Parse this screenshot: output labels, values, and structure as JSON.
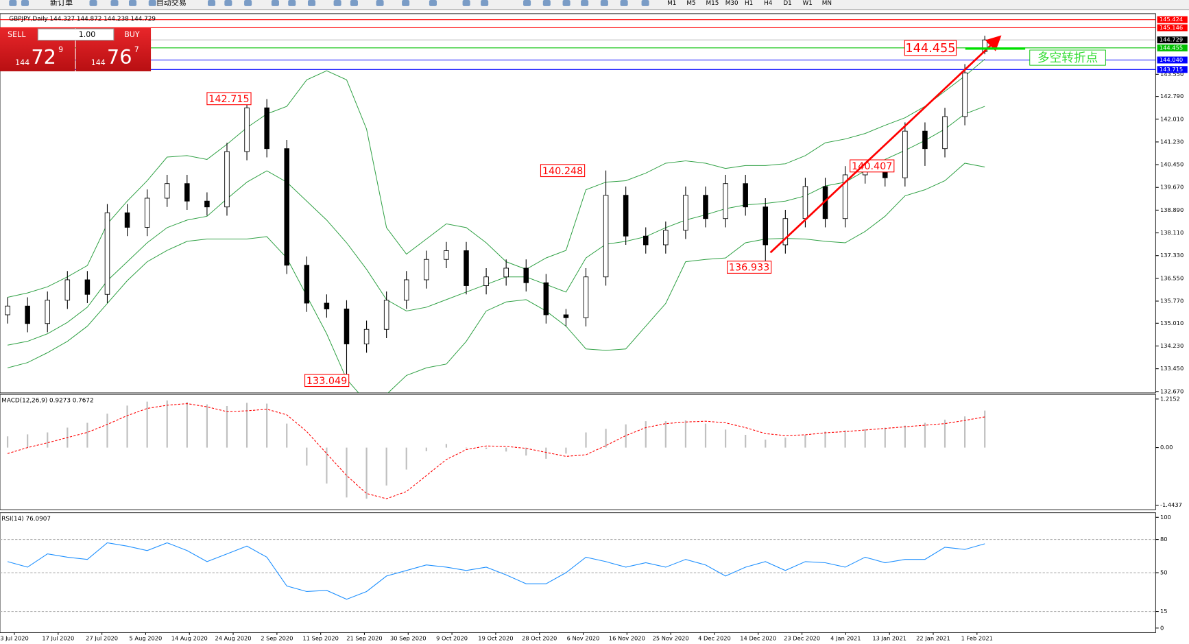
{
  "toolbar": {
    "buttons": [
      "新订单",
      "自动交易"
    ],
    "timeframes": [
      "M1",
      "M5",
      "M15",
      "M30",
      "H1",
      "H4",
      "D1",
      "W1",
      "MN"
    ]
  },
  "trade_panel": {
    "sell": "SELL",
    "buy": "BUY",
    "volume": "1.00",
    "bid": {
      "big": "144",
      "main": "72",
      "small": "9"
    },
    "ask": {
      "big": "144",
      "main": "76",
      "small": "7"
    }
  },
  "chart_data": [
    {
      "type": "candlestick",
      "title": "GBPJPY,Daily 144.327 144.872 144.238 144.729",
      "candles": [
        [
          135.3,
          135.9,
          135.0,
          135.6
        ],
        [
          135.6,
          135.9,
          134.7,
          135.0
        ],
        [
          135.0,
          136.1,
          134.7,
          135.8
        ],
        [
          135.8,
          136.8,
          135.5,
          136.5
        ],
        [
          136.5,
          136.8,
          135.7,
          136.0
        ],
        [
          136.0,
          139.1,
          135.7,
          138.8
        ],
        [
          138.8,
          139.1,
          138.0,
          138.3
        ],
        [
          138.3,
          139.6,
          138.0,
          139.3
        ],
        [
          139.3,
          140.1,
          139.0,
          139.8
        ],
        [
          139.8,
          140.1,
          138.9,
          139.2
        ],
        [
          139.2,
          139.5,
          138.7,
          139.0
        ],
        [
          139.0,
          141.2,
          138.7,
          140.9
        ],
        [
          140.9,
          142.715,
          140.6,
          142.4
        ],
        [
          142.4,
          142.7,
          140.7,
          141.0
        ],
        [
          141.0,
          141.3,
          136.7,
          137.0
        ],
        [
          137.0,
          137.3,
          135.4,
          135.7
        ],
        [
          135.7,
          136.0,
          135.2,
          135.5
        ],
        [
          135.5,
          135.8,
          133.049,
          134.3
        ],
        [
          134.3,
          135.1,
          134.0,
          134.8
        ],
        [
          134.8,
          136.1,
          134.5,
          135.8
        ],
        [
          135.8,
          136.8,
          135.5,
          136.5
        ],
        [
          136.5,
          137.5,
          136.2,
          137.2
        ],
        [
          137.2,
          137.8,
          136.9,
          137.5
        ],
        [
          137.5,
          137.8,
          136.0,
          136.3
        ],
        [
          136.3,
          136.9,
          136.0,
          136.6
        ],
        [
          136.6,
          137.2,
          136.3,
          136.9
        ],
        [
          136.9,
          137.2,
          136.1,
          136.4
        ],
        [
          136.4,
          136.7,
          135.0,
          135.3
        ],
        [
          135.3,
          135.5,
          134.9,
          135.2
        ],
        [
          135.2,
          136.9,
          134.9,
          136.6
        ],
        [
          136.6,
          140.248,
          136.3,
          139.4
        ],
        [
          139.4,
          139.7,
          137.7,
          138.0
        ],
        [
          138.0,
          138.3,
          137.4,
          137.7
        ],
        [
          137.7,
          138.5,
          137.4,
          138.2
        ],
        [
          138.2,
          139.7,
          137.9,
          139.4
        ],
        [
          139.4,
          139.7,
          138.3,
          138.6
        ],
        [
          138.6,
          140.1,
          138.3,
          139.8
        ],
        [
          139.8,
          140.1,
          138.7,
          139.0
        ],
        [
          139.0,
          139.3,
          136.933,
          137.7
        ],
        [
          137.7,
          138.9,
          137.4,
          138.6
        ],
        [
          138.6,
          140.0,
          138.3,
          139.7
        ],
        [
          139.7,
          140.0,
          138.3,
          138.6
        ],
        [
          138.6,
          140.4,
          138.3,
          140.1
        ],
        [
          140.1,
          140.6,
          139.8,
          140.3
        ],
        [
          140.3,
          140.6,
          139.7,
          140.0
        ],
        [
          140.0,
          141.9,
          139.7,
          141.6
        ],
        [
          141.6,
          141.9,
          140.407,
          141.0
        ],
        [
          141.0,
          142.4,
          140.7,
          142.1
        ],
        [
          142.1,
          143.9,
          141.8,
          143.6
        ],
        [
          144.327,
          144.872,
          144.238,
          144.729
        ]
      ],
      "upper_band": {
        "color": "#2ea043",
        "values": [
          135.9,
          136.05,
          136.26,
          136.6,
          136.99,
          138.42,
          139.2,
          139.9,
          140.71,
          140.76,
          140.63,
          141.15,
          141.72,
          142.19,
          142.45,
          143.36,
          143.67,
          143.36,
          141.67,
          138.29,
          137.38,
          137.9,
          138.42,
          138.29,
          137.77,
          137.12,
          136.86,
          137.25,
          137.51,
          139.59,
          139.85,
          139.9,
          140.16,
          140.5,
          140.58,
          140.5,
          140.32,
          140.42,
          140.42,
          140.48,
          140.76,
          141.2,
          141.33,
          141.52,
          141.8,
          142.06,
          142.45,
          142.97,
          143.49,
          144.07
        ]
      },
      "middle_band": {
        "color": "#2ea043",
        "values": [
          134.26,
          134.39,
          134.65,
          135.04,
          135.56,
          136.47,
          137.12,
          137.77,
          138.29,
          138.55,
          138.68,
          139.28,
          139.85,
          140.24,
          139.85,
          139.2,
          138.55,
          137.77,
          136.86,
          135.82,
          135.43,
          135.56,
          135.82,
          136.08,
          136.34,
          136.6,
          136.6,
          136.34,
          136.08,
          137.25,
          137.72,
          137.82,
          137.98,
          138.29,
          138.55,
          138.73,
          138.94,
          139.07,
          139.12,
          139.2,
          139.38,
          139.72,
          139.85,
          140.24,
          140.63,
          140.94,
          141.28,
          141.67,
          142.19,
          142.45
        ]
      },
      "lower_band": {
        "color": "#2ea043",
        "values": [
          133.48,
          133.66,
          134.0,
          134.39,
          134.91,
          135.69,
          136.47,
          137.12,
          137.51,
          137.82,
          137.9,
          137.9,
          137.9,
          137.98,
          137.25,
          135.95,
          134.65,
          133.09,
          132.31,
          132.57,
          133.22,
          133.48,
          133.61,
          134.39,
          135.43,
          135.74,
          135.82,
          135.43,
          134.91,
          134.13,
          134.08,
          134.13,
          134.91,
          135.69,
          137.12,
          137.2,
          137.25,
          137.77,
          137.9,
          137.92,
          137.9,
          137.82,
          137.77,
          138.16,
          138.68,
          139.38,
          139.59,
          139.9,
          140.5,
          140.37
        ]
      },
      "ylim": [
        132.62,
        145.63
      ],
      "yticks": [
        {
          "value": 143.55,
          "label": "143.550"
        },
        {
          "value": 142.79,
          "label": "142.790"
        },
        {
          "value": 142.01,
          "label": "142.010"
        },
        {
          "value": 141.23,
          "label": "141.230"
        },
        {
          "value": 140.45,
          "label": "140.450"
        },
        {
          "value": 139.67,
          "label": "139.670"
        },
        {
          "value": 138.89,
          "label": "138.890"
        },
        {
          "value": 138.11,
          "label": "138.110"
        },
        {
          "value": 137.33,
          "label": "137.330"
        },
        {
          "value": 136.55,
          "label": "136.550"
        },
        {
          "value": 135.77,
          "label": "135.770"
        },
        {
          "value": 135.01,
          "label": "135.010"
        },
        {
          "value": 134.23,
          "label": "134.230"
        },
        {
          "value": 133.45,
          "label": "133.450"
        },
        {
          "value": 132.67,
          "label": "132.670"
        }
      ],
      "price_levels": [
        {
          "value": 145.424,
          "label": "145.424",
          "color": "#ff0000",
          "text_color": "#ffffff",
          "line_color": "#ff0000"
        },
        {
          "value": 145.146,
          "label": "145.146",
          "color": "#ff0000",
          "text_color": "#ffffff",
          "line_color": "#ff0000"
        },
        {
          "value": 144.729,
          "label": "144.729",
          "color": "#000000",
          "text_color": "#ffffff",
          "line_color": "#c0c0c0"
        },
        {
          "value": 144.455,
          "label": "144.455",
          "color": "#00c000",
          "text_color": "#ffffff",
          "line_color": "#00c000"
        },
        {
          "value": 144.04,
          "label": "144.040",
          "color": "#0000ff",
          "text_color": "#ffffff",
          "line_color": "#0000ff"
        },
        {
          "value": 143.715,
          "label": "143.715",
          "color": "#0000ff",
          "text_color": "#ffffff",
          "line_color": "#0000ff"
        }
      ],
      "annotations": [
        142.715,
        140.248,
        133.049,
        136.933,
        140.407,
        144.455
      ],
      "note": "多空转折点",
      "xticks": [
        "3 Jul 2020",
        "17 Jul 2020",
        "27 Jul 2020",
        "5 Aug 2020",
        "14 Aug 2020",
        "24 Aug 2020",
        "2 Sep 2020",
        "11 Sep 2020",
        "21 Sep 2020",
        "30 Sep 2020",
        "9 Oct 2020",
        "19 Oct 2020",
        "28 Oct 2020",
        "6 Nov 2020",
        "16 Nov 2020",
        "25 Nov 2020",
        "4 Dec 2020",
        "14 Dec 2020",
        "23 Dec 2020",
        "4 Jan 2021",
        "13 Jan 2021",
        "22 Jan 2021",
        "1 Feb 2021"
      ]
    },
    {
      "type": "macd",
      "title": "MACD(12,26,9) 0.9273 0.7672",
      "histogram": {
        "color": "#c0c0c0",
        "values": [
          0.28,
          0.33,
          0.38,
          0.5,
          0.62,
          0.85,
          1.05,
          1.15,
          1.18,
          1.14,
          1.08,
          1.04,
          1.12,
          1.1,
          0.6,
          -0.45,
          -0.9,
          -1.25,
          -1.28,
          -0.95,
          -0.55,
          -0.09,
          0.09,
          -0.02,
          -0.04,
          -0.1,
          -0.2,
          -0.28,
          -0.15,
          0.38,
          0.47,
          0.58,
          0.66,
          0.66,
          0.68,
          0.6,
          0.45,
          0.32,
          0.2,
          0.25,
          0.32,
          0.4,
          0.43,
          0.46,
          0.5,
          0.55,
          0.62,
          0.7,
          0.78,
          0.9273
        ]
      },
      "signal": {
        "color": "#ff0000",
        "values": [
          -0.15,
          0.0,
          0.12,
          0.25,
          0.38,
          0.58,
          0.8,
          0.98,
          1.06,
          1.1,
          1.02,
          0.9,
          0.92,
          0.96,
          0.82,
          0.4,
          -0.15,
          -0.7,
          -1.15,
          -1.28,
          -1.1,
          -0.7,
          -0.3,
          -0.05,
          0.04,
          0.03,
          -0.02,
          -0.12,
          -0.22,
          -0.18,
          0.05,
          0.3,
          0.5,
          0.6,
          0.64,
          0.66,
          0.62,
          0.5,
          0.35,
          0.3,
          0.32,
          0.37,
          0.4,
          0.44,
          0.48,
          0.52,
          0.56,
          0.6,
          0.68,
          0.7672
        ]
      },
      "ylim": [
        -1.556,
        1.33
      ],
      "yticks": [
        1.2152,
        {
          "value": 0,
          "label": "0.00"
        },
        -1.4437
      ]
    },
    {
      "type": "rsi",
      "title": "RSI(14) 76.0907",
      "color": "#1e90ff",
      "values": [
        60,
        55,
        67,
        64,
        62,
        77,
        74,
        70,
        77,
        70,
        60,
        67,
        74,
        64,
        38,
        33,
        34,
        26,
        33,
        47,
        52,
        57,
        55,
        52,
        55,
        48,
        40,
        40,
        50,
        64,
        60,
        55,
        59,
        55,
        62,
        57,
        47,
        55,
        60,
        52,
        60,
        59,
        55,
        64,
        59,
        62,
        62,
        73,
        71,
        76.0907
      ],
      "ylim": [
        0,
        100
      ],
      "yticks": [
        100,
        80,
        50,
        15,
        0
      ]
    }
  ]
}
